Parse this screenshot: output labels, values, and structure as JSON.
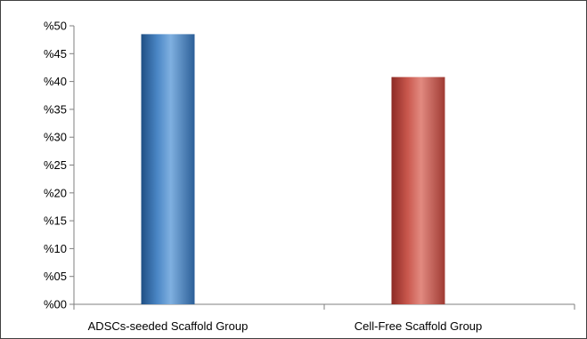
{
  "chart_data": {
    "type": "bar",
    "title": "",
    "xlabel": "",
    "ylabel": "",
    "categories": [
      "ADSCs-seeded Scaffold Group",
      "Cell-Free Scaffold Group"
    ],
    "values": [
      48.5,
      40.8
    ],
    "value_unit": "percent",
    "ylim": [
      0,
      50
    ],
    "yticks": [
      0,
      5,
      10,
      15,
      20,
      25,
      30,
      35,
      40,
      45,
      50
    ],
    "ytick_labels": [
      "%00",
      "%05",
      "%10",
      "%15",
      "%20",
      "%25",
      "%30",
      "%35",
      "%40",
      "%45",
      "%50"
    ],
    "bar_colors": [
      "#4a86c5",
      "#c9574d"
    ],
    "grid": false,
    "legend": "none"
  }
}
